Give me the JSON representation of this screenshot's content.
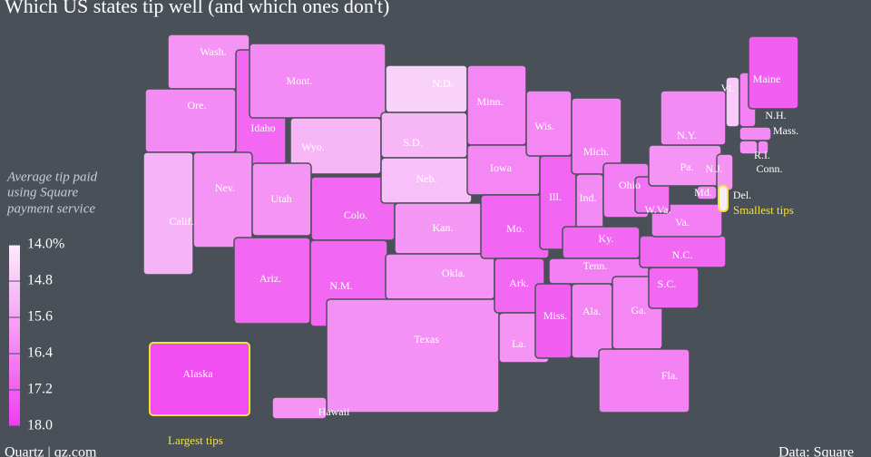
{
  "chart_data": {
    "type": "choropleth",
    "title": "Which US states tip well (and which ones don't)",
    "legend_title": [
      "Average tip paid",
      "using Square",
      "payment service"
    ],
    "legend_ticks": [
      {
        "value": 14,
        "label": "14.0%"
      },
      14.8,
      15.6,
      16.4,
      17.2,
      {
        "value": 18,
        "label": "18.0"
      }
    ],
    "color_range": [
      "#fbecfb",
      "#ef3cef"
    ],
    "highlight_color": "#f3e23a",
    "states": [
      {
        "name": "Wash.",
        "value": 16.0
      },
      {
        "name": "Ore.",
        "value": 16.2
      },
      {
        "name": "Calif.",
        "value": 15.3
      },
      {
        "name": "Idaho",
        "value": 17.0
      },
      {
        "name": "Nev.",
        "value": 16.0
      },
      {
        "name": "Mont.",
        "value": 16.2
      },
      {
        "name": "Wyo.",
        "value": 15.2
      },
      {
        "name": "Utah",
        "value": 16.0
      },
      {
        "name": "Colo.",
        "value": 17.0
      },
      {
        "name": "Ariz.",
        "value": 17.0
      },
      {
        "name": "N.M.",
        "value": 17.0
      },
      {
        "name": "N.D.",
        "value": 14.6
      },
      {
        "name": "S.D.",
        "value": 15.2
      },
      {
        "name": "Neb.",
        "value": 15.0
      },
      {
        "name": "Kan.",
        "value": 15.9
      },
      {
        "name": "Okla.",
        "value": 16.0
      },
      {
        "name": "Texas",
        "value": 16.1
      },
      {
        "name": "Minn.",
        "value": 16.3
      },
      {
        "name": "Iowa",
        "value": 16.3
      },
      {
        "name": "Mo.",
        "value": 17.1
      },
      {
        "name": "Ark.",
        "value": 17.0
      },
      {
        "name": "La.",
        "value": 16.0
      },
      {
        "name": "Wis.",
        "value": 16.3
      },
      {
        "name": "Ill.",
        "value": 17.1
      },
      {
        "name": "Mich.",
        "value": 16.4
      },
      {
        "name": "Ind.",
        "value": 16.2
      },
      {
        "name": "Ohio",
        "value": 16.5
      },
      {
        "name": "Ky.",
        "value": 17.0
      },
      {
        "name": "Tenn.",
        "value": 16.5
      },
      {
        "name": "Miss.",
        "value": 17.2
      },
      {
        "name": "Ala.",
        "value": 16.3
      },
      {
        "name": "Ga.",
        "value": 16.3
      },
      {
        "name": "Fla.",
        "value": 16.4
      },
      {
        "name": "S.C.",
        "value": 17.0
      },
      {
        "name": "N.C.",
        "value": 17.0
      },
      {
        "name": "Va.",
        "value": 16.5
      },
      {
        "name": "W.Va.",
        "value": 16.8
      },
      {
        "name": "Pa.",
        "value": 16.0
      },
      {
        "name": "N.Y.",
        "value": 16.2
      },
      {
        "name": "Vt.",
        "value": 14.8
      },
      {
        "name": "N.H.",
        "value": 16.4
      },
      {
        "name": "Maine",
        "value": 17.2
      },
      {
        "name": "Mass.",
        "value": 16.2
      },
      {
        "name": "R.I.",
        "value": 16.3
      },
      {
        "name": "Conn.",
        "value": 16.1
      },
      {
        "name": "N.J.",
        "value": 16.0
      },
      {
        "name": "Md.",
        "value": 16.2
      },
      {
        "name": "Del.",
        "value": 14.0,
        "highlight": true
      },
      {
        "name": "Alaska",
        "value": 17.6,
        "highlight": true
      },
      {
        "name": "Hawaii",
        "value": 16.0
      }
    ],
    "annotations": [
      "Smallest tips",
      "Largest tips"
    ],
    "source": "Quartz | qz.com",
    "credit": "Data: Square"
  }
}
